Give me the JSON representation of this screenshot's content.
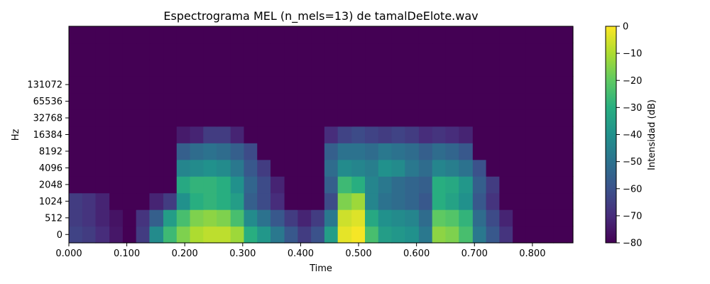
{
  "chart_data": {
    "type": "heatmap",
    "title": "Espectrograma MEL (n_mels=13) de tamalDeElote.wav",
    "xlabel": "Time",
    "ylabel": "Hz",
    "xlim": [
      0,
      0.87
    ],
    "x_ticks": [
      0.0,
      0.1,
      0.2,
      0.3,
      0.4,
      0.5,
      0.6,
      0.7,
      0.8
    ],
    "x_tick_labels": [
      "0.000",
      "0.100",
      "0.200",
      "0.300",
      "0.400",
      "0.500",
      "0.600",
      "0.700",
      "0.800"
    ],
    "y_tick_labels": [
      "0",
      "512",
      "1024",
      "2048",
      "4096",
      "8192",
      "16384",
      "32768",
      "65536",
      "131072"
    ],
    "n_mels": 13,
    "colorbar": {
      "label": "Intensidad (dB)",
      "range": [
        -80,
        0
      ],
      "ticks": [
        0,
        -10,
        -20,
        -30,
        -40,
        -50,
        -60,
        -70,
        -80
      ],
      "tick_labels": [
        "0",
        "−10",
        "−20",
        "−30",
        "−40",
        "−50",
        "−60",
        "−70",
        "−80"
      ]
    },
    "colormap": "viridis",
    "colormap_stops": [
      "#440154",
      "#472d7b",
      "#3b528b",
      "#2c728e",
      "#21918c",
      "#28ae80",
      "#5ec962",
      "#addc30",
      "#fde725"
    ],
    "time_frames": [
      0.0,
      0.023,
      0.046,
      0.07,
      0.093,
      0.116,
      0.139,
      0.163,
      0.186,
      0.209,
      0.232,
      0.255,
      0.279,
      0.302,
      0.325,
      0.348,
      0.372,
      0.395,
      0.418,
      0.441,
      0.464,
      0.488,
      0.511,
      0.534,
      0.557,
      0.58,
      0.604,
      0.627,
      0.65,
      0.673,
      0.697,
      0.72,
      0.743,
      0.766,
      0.789,
      0.813,
      0.836,
      0.859
    ],
    "mel_bands_db": [
      [
        -64,
        -66,
        -70,
        -75,
        -80,
        -66,
        -42,
        -26,
        -16,
        -10,
        -8,
        -8,
        -12,
        -30,
        -38,
        -48,
        -58,
        -66,
        -60,
        -36,
        -3,
        -1,
        -24,
        -36,
        -38,
        -40,
        -48,
        -14,
        -16,
        -24,
        -48,
        -58,
        -68,
        -80,
        -80,
        -80,
        -80,
        -80
      ],
      [
        -66,
        -68,
        -72,
        -76,
        -80,
        -68,
        -56,
        -36,
        -24,
        -16,
        -14,
        -16,
        -24,
        -42,
        -50,
        -58,
        -66,
        -72,
        -66,
        -48,
        -6,
        -4,
        -32,
        -40,
        -42,
        -44,
        -52,
        -20,
        -22,
        -28,
        -52,
        -62,
        -72,
        -80,
        -80,
        -80,
        -80,
        -80
      ],
      [
        -66,
        -68,
        -72,
        -80,
        -80,
        -80,
        -72,
        -66,
        -40,
        -30,
        -28,
        -30,
        -36,
        -56,
        -62,
        -70,
        -80,
        -80,
        -80,
        -62,
        -16,
        -12,
        -44,
        -50,
        -52,
        -54,
        -58,
        -30,
        -34,
        -40,
        -58,
        -68,
        -80,
        -80,
        -80,
        -80,
        -80,
        -80
      ],
      [
        -80,
        -80,
        -80,
        -80,
        -80,
        -80,
        -80,
        -80,
        -32,
        -28,
        -28,
        -30,
        -40,
        -54,
        -62,
        -72,
        -80,
        -80,
        -80,
        -56,
        -26,
        -30,
        -44,
        -48,
        -52,
        -54,
        -56,
        -30,
        -32,
        -38,
        -56,
        -66,
        -80,
        -80,
        -80,
        -80,
        -80,
        -80
      ],
      [
        -80,
        -80,
        -80,
        -80,
        -80,
        -80,
        -80,
        -80,
        -44,
        -42,
        -40,
        -42,
        -48,
        -58,
        -66,
        -80,
        -80,
        -80,
        -80,
        -52,
        -42,
        -44,
        -46,
        -40,
        -42,
        -48,
        -52,
        -44,
        -46,
        -50,
        -60,
        -80,
        -80,
        -80,
        -80,
        -80,
        -80,
        -80
      ],
      [
        -80,
        -80,
        -80,
        -80,
        -80,
        -80,
        -80,
        -80,
        -56,
        -52,
        -50,
        -52,
        -56,
        -62,
        -80,
        -80,
        -80,
        -80,
        -80,
        -56,
        -50,
        -50,
        -52,
        -48,
        -50,
        -52,
        -56,
        -52,
        -54,
        -58,
        -80,
        -80,
        -80,
        -80,
        -80,
        -80,
        -80,
        -80
      ],
      [
        -80,
        -80,
        -80,
        -80,
        -80,
        -80,
        -80,
        -80,
        -74,
        -72,
        -66,
        -66,
        -72,
        -80,
        -80,
        -80,
        -80,
        -80,
        -80,
        -70,
        -64,
        -62,
        -64,
        -66,
        -64,
        -66,
        -70,
        -68,
        -70,
        -72,
        -80,
        -80,
        -80,
        -80,
        -80,
        -80,
        -80,
        -80
      ],
      [
        -80,
        -80,
        -80,
        -80,
        -80,
        -80,
        -80,
        -80,
        -80,
        -80,
        -80,
        -80,
        -80,
        -80,
        -80,
        -80,
        -80,
        -80,
        -80,
        -80,
        -80,
        -80,
        -80,
        -80,
        -80,
        -80,
        -80,
        -80,
        -80,
        -80,
        -80,
        -80,
        -80,
        -80,
        -80,
        -80,
        -80,
        -80
      ],
      [
        -80,
        -80,
        -80,
        -80,
        -80,
        -80,
        -80,
        -80,
        -80,
        -80,
        -80,
        -80,
        -80,
        -80,
        -80,
        -80,
        -80,
        -80,
        -80,
        -80,
        -80,
        -80,
        -80,
        -80,
        -80,
        -80,
        -80,
        -80,
        -80,
        -80,
        -80,
        -80,
        -80,
        -80,
        -80,
        -80,
        -80,
        -80
      ],
      [
        -80,
        -80,
        -80,
        -80,
        -80,
        -80,
        -80,
        -80,
        -80,
        -80,
        -80,
        -80,
        -80,
        -80,
        -80,
        -80,
        -80,
        -80,
        -80,
        -80,
        -80,
        -80,
        -80,
        -80,
        -80,
        -80,
        -80,
        -80,
        -80,
        -80,
        -80,
        -80,
        -80,
        -80,
        -80,
        -80,
        -80,
        -80
      ],
      [
        -80,
        -80,
        -80,
        -80,
        -80,
        -80,
        -80,
        -80,
        -80,
        -80,
        -80,
        -80,
        -80,
        -80,
        -80,
        -80,
        -80,
        -80,
        -80,
        -80,
        -80,
        -80,
        -80,
        -80,
        -80,
        -80,
        -80,
        -80,
        -80,
        -80,
        -80,
        -80,
        -80,
        -80,
        -80,
        -80,
        -80,
        -80
      ],
      [
        -80,
        -80,
        -80,
        -80,
        -80,
        -80,
        -80,
        -80,
        -80,
        -80,
        -80,
        -80,
        -80,
        -80,
        -80,
        -80,
        -80,
        -80,
        -80,
        -80,
        -80,
        -80,
        -80,
        -80,
        -80,
        -80,
        -80,
        -80,
        -80,
        -80,
        -80,
        -80,
        -80,
        -80,
        -80,
        -80,
        -80,
        -80
      ],
      [
        -80,
        -80,
        -80,
        -80,
        -80,
        -80,
        -80,
        -80,
        -80,
        -80,
        -80,
        -80,
        -80,
        -80,
        -80,
        -80,
        -80,
        -80,
        -80,
        -80,
        -80,
        -80,
        -80,
        -80,
        -80,
        -80,
        -80,
        -80,
        -80,
        -80,
        -80,
        -80,
        -80,
        -80,
        -80,
        -80,
        -80,
        -80
      ]
    ]
  }
}
